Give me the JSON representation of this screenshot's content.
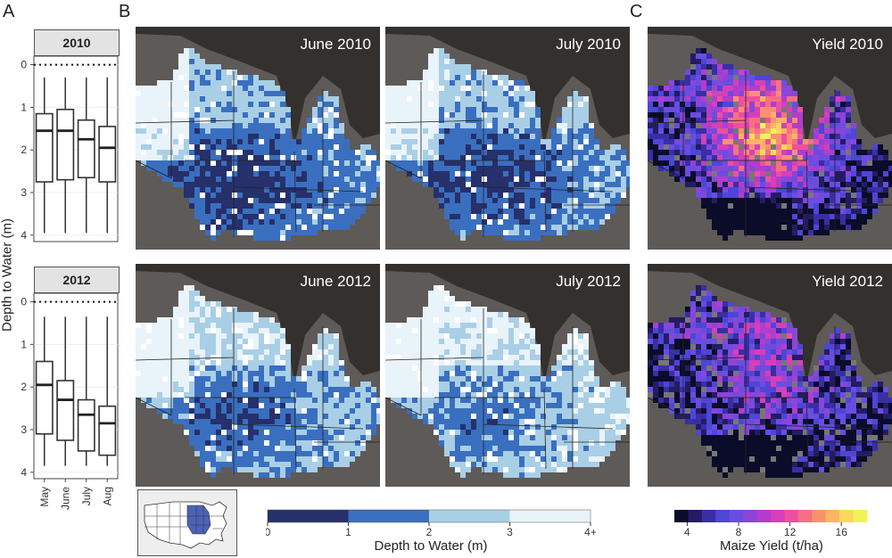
{
  "panels": {
    "a": "A",
    "b": "B",
    "c": "C"
  },
  "chart_data": [
    {
      "type": "box",
      "panel": "A",
      "facets": [
        {
          "label": "2010",
          "boxes": [
            {
              "category": "May",
              "whisker_low": 0.3,
              "q1": 1.15,
              "median": 1.55,
              "q3": 2.75,
              "whisker_high": 3.95
            },
            {
              "category": "June",
              "whisker_low": 0.3,
              "q1": 1.05,
              "median": 1.55,
              "q3": 2.7,
              "whisker_high": 3.95
            },
            {
              "category": "July",
              "whisker_low": 0.3,
              "q1": 1.3,
              "median": 1.75,
              "q3": 2.65,
              "whisker_high": 3.95
            },
            {
              "category": "Aug",
              "whisker_low": 0.3,
              "q1": 1.45,
              "median": 1.95,
              "q3": 2.75,
              "whisker_high": 3.95
            }
          ]
        },
        {
          "label": "2012",
          "boxes": [
            {
              "category": "May",
              "whisker_low": 0.35,
              "q1": 1.4,
              "median": 1.95,
              "q3": 3.1,
              "whisker_high": 3.85
            },
            {
              "category": "June",
              "whisker_low": 0.35,
              "q1": 1.85,
              "median": 2.3,
              "q3": 3.25,
              "whisker_high": 3.85
            },
            {
              "category": "July",
              "whisker_low": 0.35,
              "q1": 2.3,
              "median": 2.65,
              "q3": 3.5,
              "whisker_high": 3.85
            },
            {
              "category": "Aug",
              "whisker_low": 0.35,
              "q1": 2.45,
              "median": 2.85,
              "q3": 3.6,
              "whisker_high": 3.85
            }
          ]
        }
      ],
      "categories": [
        "May",
        "June",
        "July",
        "Aug"
      ],
      "ylabel": "Depth to Water (m)",
      "yticks": [
        "0",
        "1",
        "2",
        "3",
        "4"
      ],
      "ylim": [
        4.15,
        -0.2
      ],
      "reference_line": 0
    },
    {
      "type": "heatmap",
      "panel": "B",
      "maps": [
        "June 2010",
        "July 2010",
        "June 2012",
        "July 2012"
      ],
      "legend": {
        "title": "Depth to Water (m)",
        "ticks": [
          "0",
          "1",
          "2",
          "3",
          "4+"
        ],
        "colors": [
          "#26306b",
          "#3a6fc0",
          "#a9cfe6",
          "#e9f3fa"
        ]
      }
    },
    {
      "type": "heatmap",
      "panel": "C",
      "maps": [
        "Yield 2010",
        "Yield 2012"
      ],
      "legend": {
        "title": "Maize Yield (t/ha)",
        "ticks": [
          "4",
          "8",
          "12",
          "16"
        ],
        "range": [
          3,
          18
        ],
        "colors": [
          "#0b0c29",
          "#241c63",
          "#3a2ea6",
          "#4d46d6",
          "#6a4de0",
          "#8b45d9",
          "#b23dcc",
          "#d63fb8",
          "#ef4f9e",
          "#f76f85",
          "#fb9071",
          "#fdb463",
          "#fbd85c",
          "#f2f25a"
        ]
      }
    }
  ],
  "colors": {
    "land": "#5e5a57",
    "lake": "#33302e",
    "border": "#222222"
  }
}
